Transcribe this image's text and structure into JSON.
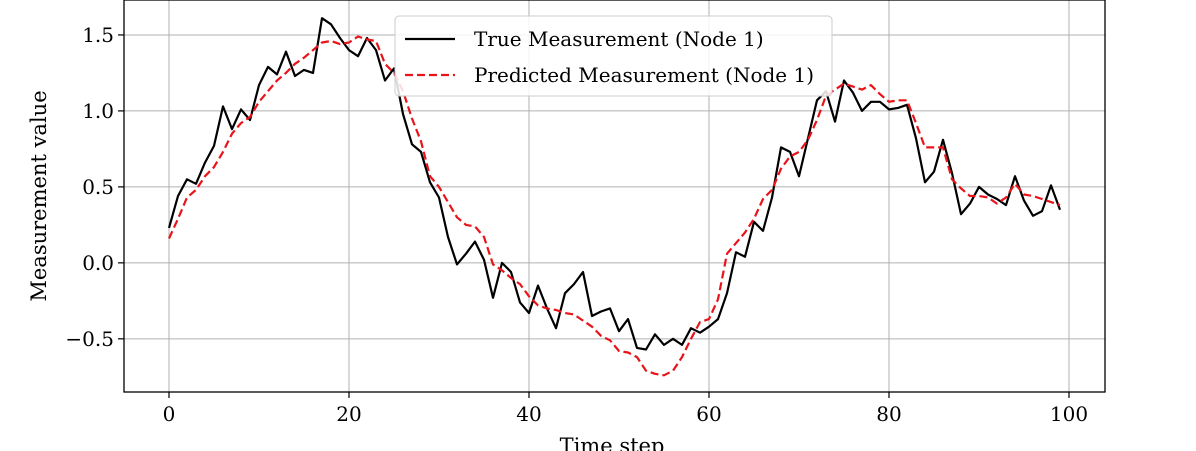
{
  "chart_data": {
    "type": "line",
    "title": "",
    "xlabel": "Time step",
    "ylabel": "Measurement value",
    "xlim": [
      -5,
      104
    ],
    "ylim": [
      -0.85,
      1.73
    ],
    "xticks": [
      0,
      20,
      40,
      60,
      80,
      100
    ],
    "yticks": [
      -0.5,
      0.0,
      0.5,
      1.0,
      1.5
    ],
    "xtick_labels": [
      "0",
      "20",
      "40",
      "60",
      "80",
      "100"
    ],
    "ytick_labels": [
      "−0.5",
      "0.0",
      "0.5",
      "1.0",
      "1.5"
    ],
    "grid": true,
    "legend_position": "top-center",
    "series": [
      {
        "name": "True Measurement (Node 1)",
        "color": "#000000",
        "style": "solid",
        "values": [
          0.23,
          0.44,
          0.55,
          0.52,
          0.66,
          0.77,
          1.03,
          0.88,
          1.01,
          0.94,
          1.17,
          1.29,
          1.24,
          1.39,
          1.23,
          1.27,
          1.25,
          1.61,
          1.57,
          1.48,
          1.4,
          1.36,
          1.48,
          1.4,
          1.2,
          1.28,
          0.98,
          0.78,
          0.73,
          0.53,
          0.43,
          0.17,
          -0.01,
          0.06,
          0.14,
          0.02,
          -0.23,
          0.0,
          -0.06,
          -0.26,
          -0.33,
          -0.15,
          -0.3,
          -0.43,
          -0.2,
          -0.14,
          -0.06,
          -0.35,
          -0.32,
          -0.3,
          -0.45,
          -0.37,
          -0.56,
          -0.57,
          -0.47,
          -0.54,
          -0.5,
          -0.54,
          -0.43,
          -0.46,
          -0.42,
          -0.37,
          -0.2,
          0.07,
          0.04,
          0.27,
          0.21,
          0.43,
          0.76,
          0.73,
          0.57,
          0.82,
          1.07,
          1.13,
          0.93,
          1.2,
          1.12,
          1.0,
          1.06,
          1.06,
          1.01,
          1.02,
          1.04,
          0.82,
          0.53,
          0.6,
          0.81,
          0.59,
          0.32,
          0.39,
          0.5,
          0.45,
          0.42,
          0.38,
          0.57,
          0.41,
          0.31,
          0.34,
          0.51,
          0.35
        ]
      },
      {
        "name": "Predicted Measurement (Node 1)",
        "color": "#e8141a",
        "style": "dashed",
        "values": [
          0.16,
          0.29,
          0.43,
          0.48,
          0.57,
          0.63,
          0.73,
          0.85,
          0.92,
          0.96,
          1.06,
          1.13,
          1.2,
          1.25,
          1.31,
          1.35,
          1.4,
          1.45,
          1.46,
          1.44,
          1.45,
          1.49,
          1.47,
          1.46,
          1.31,
          1.25,
          1.13,
          0.95,
          0.8,
          0.57,
          0.5,
          0.4,
          0.3,
          0.25,
          0.24,
          0.17,
          -0.01,
          -0.05,
          -0.1,
          -0.14,
          -0.22,
          -0.28,
          -0.3,
          -0.31,
          -0.33,
          -0.34,
          -0.38,
          -0.42,
          -0.48,
          -0.51,
          -0.58,
          -0.59,
          -0.62,
          -0.71,
          -0.73,
          -0.74,
          -0.71,
          -0.62,
          -0.5,
          -0.39,
          -0.37,
          -0.24,
          0.06,
          0.13,
          0.2,
          0.29,
          0.42,
          0.48,
          0.62,
          0.7,
          0.73,
          0.81,
          0.94,
          1.1,
          1.14,
          1.18,
          1.16,
          1.14,
          1.17,
          1.11,
          1.06,
          1.07,
          1.07,
          0.92,
          0.76,
          0.76,
          0.76,
          0.55,
          0.49,
          0.44,
          0.44,
          0.43,
          0.39,
          0.43,
          0.52,
          0.45,
          0.44,
          0.42,
          0.4,
          0.38
        ]
      }
    ]
  }
}
